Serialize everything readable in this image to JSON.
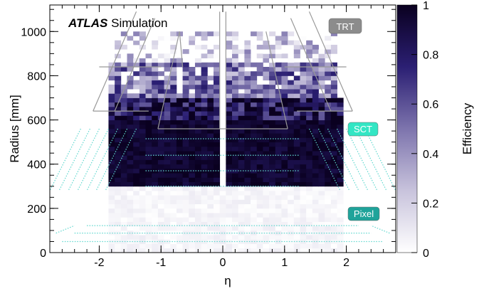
{
  "chart_data": {
    "type": "heatmap",
    "title_bold": "ATLAS",
    "title_rest": " Simulation",
    "xlabel": "η",
    "ylabel": "Radius [mm]",
    "zlabel": "Efficiency",
    "xlim": [
      -2.8,
      2.8
    ],
    "ylim": [
      0,
      1120
    ],
    "zlim": [
      0,
      1
    ],
    "x_ticks": [
      -2,
      -1,
      0,
      1,
      2
    ],
    "x_tick_labels": [
      "-2",
      "-1",
      "0",
      "1",
      "2"
    ],
    "y_ticks": [
      0,
      200,
      400,
      600,
      800,
      1000
    ],
    "y_tick_labels": [
      "0",
      "200",
      "400",
      "600",
      "800",
      "1000"
    ],
    "z_ticks": [
      0,
      0.2,
      0.4,
      0.6,
      0.8,
      1
    ],
    "z_tick_labels": [
      "0",
      "0.2",
      "0.4",
      "0.6",
      "0.8",
      "1"
    ],
    "colorscale": [
      "#ffffff",
      "#0a0020"
    ],
    "detector_labels": [
      {
        "text": "TRT",
        "color": "#8c8c8c",
        "eta": 2.0,
        "r": 1030
      },
      {
        "text": "SCT",
        "color": "#33e6c4",
        "eta": 2.2,
        "r": 560
      },
      {
        "text": "Pixel",
        "color": "#1fa39a",
        "eta": 2.2,
        "r": 175
      }
    ],
    "efficiency_regions": [
      {
        "r_range": [
          0,
          290
        ],
        "eta_range": [
          -1.9,
          1.9
        ],
        "efficiency": 0.05
      },
      {
        "r_range": [
          290,
          600
        ],
        "eta_range": [
          -1.9,
          1.9
        ],
        "efficiency": 0.95
      },
      {
        "r_range": [
          600,
          700
        ],
        "eta_range": [
          -1.9,
          1.9
        ],
        "efficiency": 0.85
      },
      {
        "r_range": [
          700,
          850
        ],
        "eta_range": [
          -1.85,
          1.85
        ],
        "efficiency": 0.5
      },
      {
        "r_range": [
          850,
          1000
        ],
        "eta_range": [
          -1.8,
          1.8
        ],
        "efficiency": 0.2
      }
    ]
  }
}
